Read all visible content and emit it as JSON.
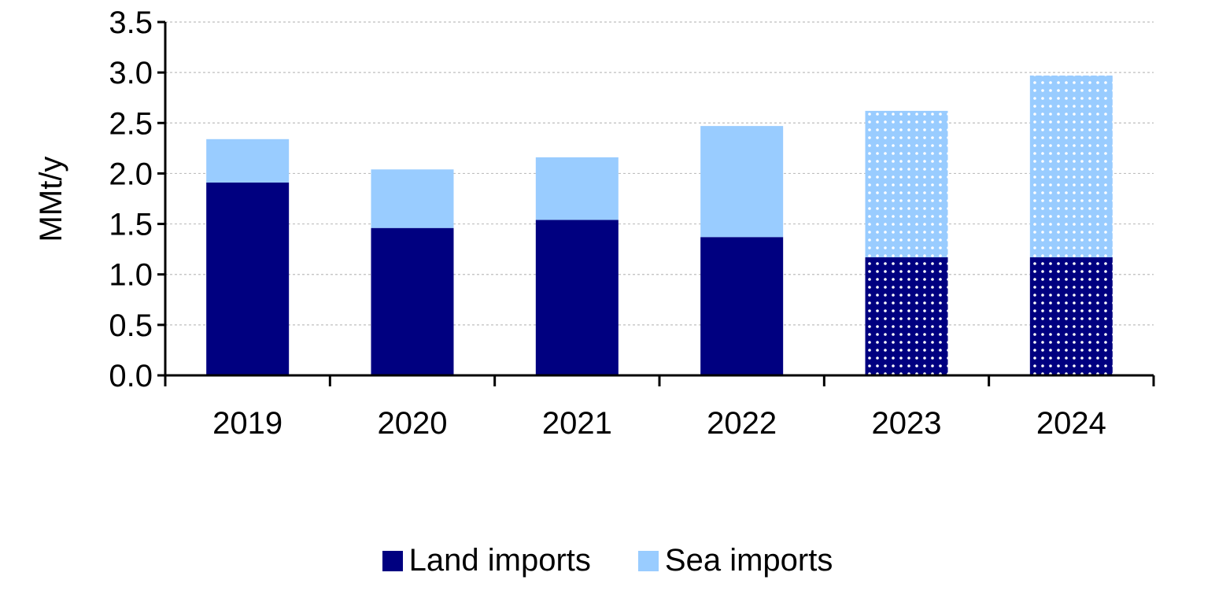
{
  "chart_data": {
    "type": "bar",
    "stacked": true,
    "categories": [
      "2019",
      "2020",
      "2021",
      "2022",
      "2023",
      "2024"
    ],
    "series": [
      {
        "name": "Land imports",
        "values": [
          1.91,
          1.46,
          1.54,
          1.37,
          1.17,
          1.17
        ],
        "color": "#000080"
      },
      {
        "name": "Sea imports",
        "values": [
          0.43,
          0.58,
          0.62,
          1.1,
          1.45,
          1.8
        ],
        "color": "#99CCFF"
      }
    ],
    "forecast_categories": [
      "2023",
      "2024"
    ],
    "forecast_pattern": "dotted",
    "ylabel": "MMt/y",
    "ylim": [
      0,
      3.5
    ],
    "yticks": [
      "0.0",
      "0.5",
      "1.0",
      "1.5",
      "2.0",
      "2.5",
      "3.0",
      "3.5"
    ],
    "grid": true,
    "legend_position": "bottom"
  }
}
